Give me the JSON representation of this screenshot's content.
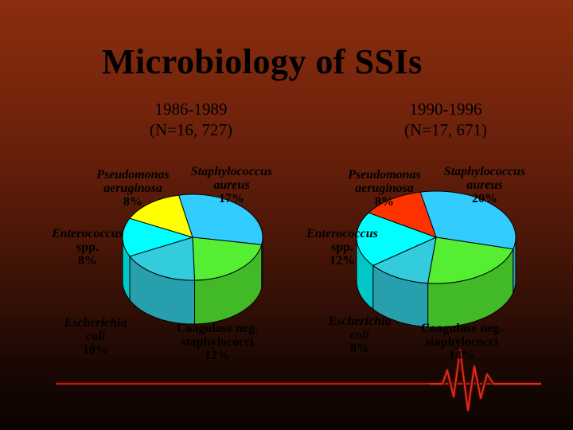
{
  "slide": {
    "title": "Microbiology of SSIs"
  },
  "colors": {
    "staph_aureus": "#33ccff",
    "coag_neg_staph": "#55ee33",
    "e_coli": "#99ffff",
    "enterococcus": "#22eeff",
    "pseudomonas": "#ffff00",
    "pseudomonas_alt": "#ff3300",
    "other": "#6699ff"
  },
  "chart_data": [
    {
      "type": "pie",
      "title": "1986-1989",
      "subtitle": "(N=16, 727)",
      "slices": [
        {
          "label": "Staphylococcus aureus",
          "value": 17,
          "display": "17%"
        },
        {
          "label": "Coagulase neg. staphylococci",
          "value": 12,
          "display": "12%"
        },
        {
          "label": "Escherichia coli",
          "value": 10,
          "display": "10%"
        },
        {
          "label": "Enterococcus spp.",
          "value": 8,
          "display": "8%"
        },
        {
          "label": "Pseudomonas aeruginosa",
          "value": 8,
          "display": "8%"
        }
      ]
    },
    {
      "type": "pie",
      "title": "1990-1996",
      "subtitle": "(N=17, 671)",
      "slices": [
        {
          "label": "Staphylococcus aureus",
          "value": 20,
          "display": "20%"
        },
        {
          "label": "Coagulase neg. staphylococci",
          "value": 14,
          "display": "14%"
        },
        {
          "label": "Escherichia coli",
          "value": 8,
          "display": "8%"
        },
        {
          "label": "Enterococcus spp.",
          "value": 12,
          "display": "12%"
        },
        {
          "label": "Pseudomonas aeruginosa",
          "value": 8,
          "display": "8%"
        }
      ]
    }
  ],
  "labels": {
    "left": {
      "staph": {
        "l1": "Staphylococcus",
        "l2": "aureus",
        "pct": "17%"
      },
      "pseudo": {
        "l1": "Pseudomonas",
        "l2": "aeruginosa",
        "pct": "8%"
      },
      "entero": {
        "l1": "Enterococcus",
        "l2": "spp.",
        "pct": "8%"
      },
      "ecoli": {
        "l1": "Escherichia",
        "l2": "coli",
        "pct": "10%"
      },
      "coag": {
        "l1": "Coagulase neg.",
        "l2": "staphylococci",
        "pct": "12%"
      }
    },
    "right": {
      "staph": {
        "l1": "Staphylococcus",
        "l2": "aureus",
        "pct": "20%"
      },
      "pseudo": {
        "l1": "Pseudomonas",
        "l2": "aeruginosa",
        "pct": "8%"
      },
      "entero": {
        "l1": "Enterococcus",
        "l2": "spp.",
        "pct": "12%"
      },
      "ecoli": {
        "l1": "Escherichia",
        "l2": "coli",
        "pct": "8%"
      },
      "coag": {
        "l1": "Coagulase neg.",
        "l2": "staphylococci",
        "pct": "14%"
      }
    }
  }
}
